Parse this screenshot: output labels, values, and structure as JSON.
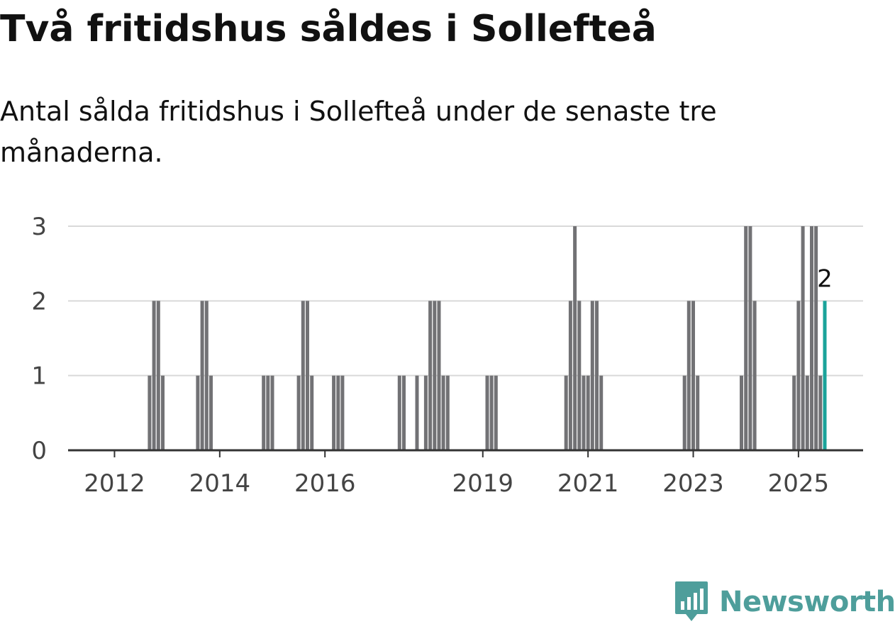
{
  "title": "Två fritidshus såldes i Sollefteå",
  "subtitle": "Antal sålda fritidshus i Sollefteå under de senaste tre månaderna.",
  "brand": {
    "name": "Newsworthy",
    "logo_icon": "bar-chart-speech-bubble-icon"
  },
  "colors": {
    "bar": "#727275",
    "highlight": "#1aa39a",
    "grid": "#d9d9d9",
    "axis": "#333333",
    "text": "#444444",
    "brand": "#4e9e9b"
  },
  "chart_data": {
    "type": "bar",
    "title": "Två fritidshus såldes i Sollefteå",
    "subtitle": "Antal sålda fritidshus i Sollefteå under de senaste tre månaderna.",
    "xlabel": "",
    "ylabel": "",
    "x_range": [
      "2011-05",
      "2025-07"
    ],
    "ylim": [
      0,
      3
    ],
    "yticks": [
      0,
      1,
      2,
      3
    ],
    "xticks": [
      {
        "date": "2012-01",
        "label": "2012"
      },
      {
        "date": "2014-01",
        "label": "2014"
      },
      {
        "date": "2016-01",
        "label": "2016"
      },
      {
        "date": "2019-01",
        "label": "2019"
      },
      {
        "date": "2021-01",
        "label": "2021"
      },
      {
        "date": "2023-01",
        "label": "2023"
      },
      {
        "date": "2025-01",
        "label": "2025"
      }
    ],
    "grid": true,
    "legend": "none",
    "x": [
      "2012-09",
      "2012-10",
      "2012-11",
      "2012-12",
      "2013-08",
      "2013-09",
      "2013-10",
      "2013-11",
      "2014-11",
      "2014-12",
      "2015-01",
      "2015-07",
      "2015-08",
      "2015-09",
      "2015-10",
      "2016-03",
      "2016-04",
      "2016-05",
      "2017-06",
      "2017-07",
      "2017-10",
      "2017-12",
      "2018-01",
      "2018-02",
      "2018-03",
      "2018-04",
      "2018-05",
      "2019-02",
      "2019-03",
      "2019-04",
      "2020-08",
      "2020-09",
      "2020-10",
      "2020-11",
      "2020-12",
      "2021-01",
      "2021-02",
      "2021-03",
      "2021-04",
      "2022-11",
      "2022-12",
      "2023-01",
      "2023-02",
      "2023-12",
      "2024-01",
      "2024-02",
      "2024-03",
      "2024-12",
      "2025-01",
      "2025-02",
      "2025-03",
      "2025-04",
      "2025-05",
      "2025-06",
      "2025-07"
    ],
    "values": [
      1,
      2,
      2,
      1,
      1,
      2,
      2,
      1,
      1,
      1,
      1,
      1,
      2,
      2,
      1,
      1,
      1,
      1,
      1,
      1,
      1,
      1,
      2,
      2,
      2,
      1,
      1,
      1,
      1,
      1,
      1,
      2,
      3,
      2,
      1,
      1,
      2,
      2,
      1,
      1,
      2,
      2,
      1,
      1,
      3,
      3,
      2,
      1,
      2,
      3,
      1,
      3,
      3,
      1,
      2
    ],
    "highlight": {
      "x": "2025-07",
      "value": 2,
      "label": "2"
    }
  }
}
